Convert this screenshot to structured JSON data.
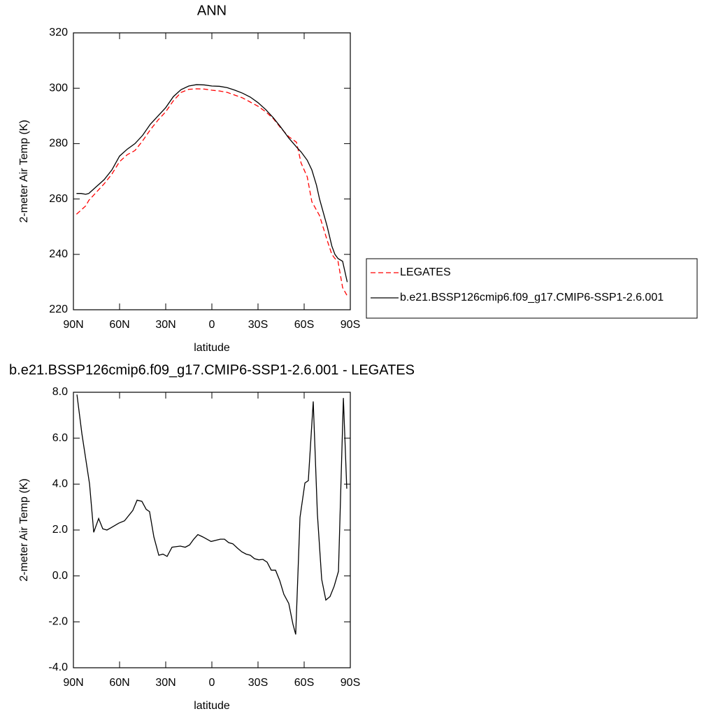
{
  "chart_data": [
    {
      "type": "line",
      "title": "ANN",
      "xlabel": "latitude",
      "ylabel": "2-meter Air Temp (K)",
      "x": [
        88,
        85,
        82,
        80,
        75,
        70,
        65,
        60,
        55,
        50,
        45,
        40,
        35,
        30,
        25,
        20,
        15,
        10,
        5,
        0,
        -5,
        -10,
        -15,
        -20,
        -25,
        -30,
        -35,
        -40,
        -45,
        -50,
        -55,
        -58,
        -62,
        -65,
        -68,
        -70,
        -75,
        -78,
        -80,
        -82,
        -85,
        -88
      ],
      "series": [
        {
          "name": "LEGATES",
          "color": "#ff0000",
          "linestyle": "dashed",
          "values": [
            254.5,
            256,
            257.5,
            259.5,
            262.5,
            265.5,
            269,
            273.5,
            276,
            277.5,
            281,
            285,
            288.5,
            291.5,
            295.5,
            298.5,
            299.6,
            299.8,
            299.7,
            299.3,
            299,
            298.5,
            297.5,
            296.5,
            295,
            293.5,
            291.5,
            289,
            285.5,
            282.5,
            280.5,
            273,
            268,
            259,
            256,
            254,
            245,
            240,
            238.5,
            237.5,
            228,
            225
          ]
        },
        {
          "name": "b.e21.BSSP126cmip6.f09_g17.CMIP6-SSP1-2.6.001",
          "color": "#000000",
          "linestyle": "solid",
          "values": [
            262,
            262,
            261.7,
            262,
            264.5,
            267,
            270.5,
            275.5,
            278,
            280,
            283,
            287,
            290,
            293,
            297,
            299.5,
            300.8,
            301.3,
            301.2,
            300.8,
            300.7,
            300.2,
            299.3,
            298.2,
            296.8,
            294.8,
            292.3,
            289.3,
            285.8,
            282,
            278.8,
            277,
            274,
            270.5,
            265,
            260,
            250,
            243,
            240,
            238.5,
            237.5,
            230
          ]
        }
      ],
      "xlim": [
        90,
        -90
      ],
      "xticks": [
        {
          "value": 90,
          "label": "90N"
        },
        {
          "value": 60,
          "label": "60N"
        },
        {
          "value": 30,
          "label": "30N"
        },
        0,
        {
          "value": -30,
          "label": "30S"
        },
        {
          "value": -60,
          "label": "60S"
        },
        {
          "value": -90,
          "label": "90S"
        }
      ],
      "ylim": [
        220,
        320
      ],
      "yticks": [
        220,
        240,
        260,
        280,
        300,
        320
      ],
      "legend": "right"
    },
    {
      "type": "line",
      "title": "b.e21.BSSP126cmip6.f09_g17.CMIP6-SSP1-2.6.001 - LEGATES",
      "xlabel": "latitude",
      "ylabel": "2-meter Air Temp (K)",
      "x": [
        87.7,
        84.5,
        79.5,
        76.8,
        73.6,
        70.9,
        68.2,
        65.5,
        60.5,
        56.8,
        51.4,
        48.6,
        45.5,
        42.7,
        40.5,
        37.7,
        34.5,
        31.8,
        29.1,
        25.9,
        20.5,
        17.3,
        14.5,
        11.8,
        9.1,
        5.9,
        0.5,
        -5.5,
        -8.2,
        -10.9,
        -13.6,
        -16.8,
        -19.5,
        -22.3,
        -25,
        -27.7,
        -30.5,
        -33.2,
        -35.9,
        -38.6,
        -41.4,
        -44.1,
        -46.8,
        -50,
        -52.7,
        -54.5,
        -57.3,
        -60.5,
        -62.7,
        -65.9,
        -68.6,
        -71.4,
        -74.1,
        -76.8,
        -79.5,
        -82.3,
        -85.5,
        -87.7
      ],
      "values": [
        7.9,
        6.2,
        4.0,
        1.9,
        2.5,
        2.05,
        2.0,
        2.1,
        2.3,
        2.4,
        2.85,
        3.3,
        3.25,
        2.9,
        2.8,
        1.7,
        0.9,
        0.95,
        0.85,
        1.25,
        1.3,
        1.25,
        1.35,
        1.6,
        1.8,
        1.7,
        1.5,
        1.6,
        1.6,
        1.45,
        1.4,
        1.2,
        1.05,
        0.95,
        0.9,
        0.75,
        0.7,
        0.72,
        0.6,
        0.25,
        0.25,
        -0.2,
        -0.8,
        -1.2,
        -2.1,
        -2.55,
        2.55,
        4.05,
        4.15,
        7.6,
        2.7,
        -0.15,
        -1.05,
        -0.9,
        -0.45,
        0.2,
        7.75,
        3.8
      ],
      "color": "#000000",
      "xlim": [
        90,
        -90
      ],
      "xticks": [
        {
          "value": 90,
          "label": "90N"
        },
        {
          "value": 60,
          "label": "60N"
        },
        {
          "value": 30,
          "label": "30N"
        },
        0,
        {
          "value": -30,
          "label": "30S"
        },
        {
          "value": -60,
          "label": "60S"
        },
        {
          "value": -90,
          "label": "90S"
        }
      ],
      "ylim": [
        -4,
        8
      ],
      "yticks": [
        {
          "value": -4,
          "label": "-4.0"
        },
        {
          "value": -2,
          "label": "-2.0"
        },
        {
          "value": 0,
          "label": "0.0"
        },
        {
          "value": 2,
          "label": "2.0"
        },
        {
          "value": 4,
          "label": "4.0"
        },
        {
          "value": 6,
          "label": "6.0"
        },
        {
          "value": 8,
          "label": "8.0"
        }
      ]
    }
  ]
}
